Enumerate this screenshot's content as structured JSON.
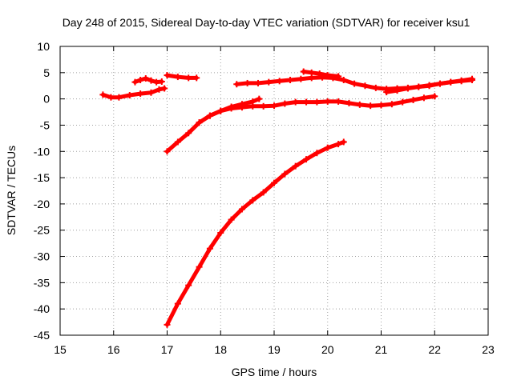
{
  "chart_data": {
    "type": "line",
    "title": "Day 248 of 2015, Sidereal Day-to-day VTEC variation (SDTVAR) for receiver ksu1",
    "xlabel": "GPS time / hours",
    "ylabel": "SDTVAR / TECUs",
    "xlim": [
      15,
      23
    ],
    "ylim": [
      -45,
      10
    ],
    "xticks": [
      "15",
      "16",
      "17",
      "18",
      "19",
      "20",
      "21",
      "22",
      "23"
    ],
    "yticks": [
      "10",
      "5",
      "0",
      "-5",
      "-10",
      "-15",
      "-20",
      "-25",
      "-30",
      "-35",
      "-40",
      "-45"
    ],
    "grid": true,
    "color": "#ff0000",
    "series": [
      {
        "x": [
          15.8,
          15.95,
          16.1,
          16.3,
          16.5,
          16.7,
          16.85,
          16.95
        ],
        "y": [
          0.8,
          0.3,
          0.3,
          0.7,
          1.0,
          1.2,
          1.8,
          2.0
        ]
      },
      {
        "x": [
          16.4,
          16.5,
          16.6,
          16.7,
          16.8,
          16.9
        ],
        "y": [
          3.2,
          3.6,
          3.9,
          3.5,
          3.2,
          3.3
        ]
      },
      {
        "x": [
          17.0,
          17.2,
          17.4,
          17.55
        ],
        "y": [
          4.5,
          4.2,
          4.0,
          4.0
        ]
      },
      {
        "x": [
          17.0,
          17.2,
          17.4,
          17.6,
          17.8,
          18.0,
          18.2,
          18.4,
          18.6,
          18.72
        ],
        "y": [
          -10.0,
          -8.2,
          -6.5,
          -4.5,
          -3.2,
          -2.3,
          -1.5,
          -1.0,
          -0.5,
          0.0
        ]
      },
      {
        "x": [
          17.6,
          17.8,
          18.0,
          18.2,
          18.4,
          18.6,
          18.8,
          19.0,
          19.2,
          19.4,
          19.6,
          19.8,
          20.0,
          20.2,
          20.4,
          20.6,
          20.8,
          21.0,
          21.2,
          21.4,
          21.6,
          21.8,
          22.0
        ],
        "y": [
          -4.5,
          -3.2,
          -2.3,
          -1.8,
          -1.6,
          -1.4,
          -1.4,
          -1.3,
          -0.9,
          -0.6,
          -0.6,
          -0.6,
          -0.5,
          -0.5,
          -0.8,
          -1.1,
          -1.3,
          -1.2,
          -1.0,
          -0.6,
          -0.2,
          0.2,
          0.5
        ]
      },
      {
        "x": [
          18.3,
          18.5,
          18.7,
          18.9,
          19.1,
          19.3,
          19.5,
          19.7,
          19.9,
          20.1,
          20.3,
          20.5,
          20.7,
          20.9,
          21.1,
          21.3,
          21.5,
          21.7,
          21.9,
          22.1,
          22.3,
          22.5,
          22.7
        ],
        "y": [
          2.8,
          3.0,
          3.0,
          3.2,
          3.4,
          3.6,
          3.8,
          4.0,
          4.1,
          4.0,
          3.6,
          2.9,
          2.5,
          2.1,
          1.9,
          2.0,
          2.1,
          2.3,
          2.5,
          2.9,
          3.2,
          3.4,
          3.6
        ]
      },
      {
        "x": [
          19.55,
          19.7,
          19.85,
          20.0,
          20.2
        ],
        "y": [
          5.2,
          5.0,
          4.8,
          4.5,
          4.3
        ]
      },
      {
        "x": [
          21.1,
          21.3,
          21.5,
          21.7,
          21.9,
          22.1,
          22.3,
          22.5,
          22.7
        ],
        "y": [
          1.3,
          1.6,
          2.0,
          2.3,
          2.6,
          2.9,
          3.2,
          3.5,
          3.8
        ]
      },
      {
        "x": [
          17.0,
          17.2,
          17.4,
          17.6,
          17.8,
          18.0,
          18.2,
          18.4,
          18.6,
          18.8,
          19.0,
          19.2,
          19.4,
          19.6,
          19.8,
          20.0,
          20.2,
          20.3
        ],
        "y": [
          -43.0,
          -39.0,
          -35.5,
          -32.0,
          -28.5,
          -25.5,
          -23.0,
          -21.0,
          -19.3,
          -17.8,
          -16.0,
          -14.3,
          -12.8,
          -11.5,
          -10.3,
          -9.3,
          -8.6,
          -8.2
        ]
      }
    ]
  }
}
